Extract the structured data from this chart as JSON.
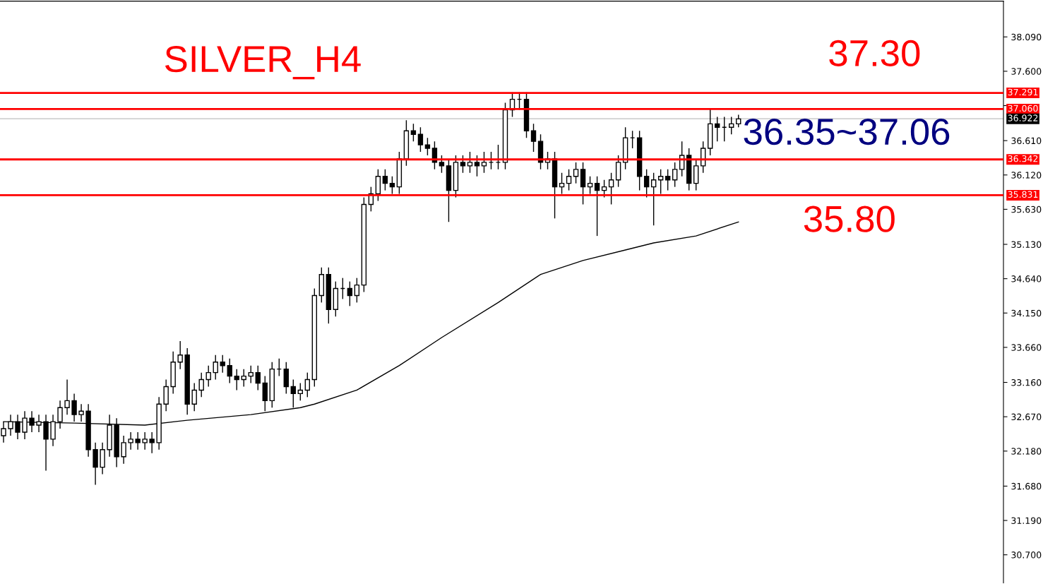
{
  "chart_data": {
    "type": "candlestick",
    "title": "SILVER_H4",
    "categories": [
      null,
      null,
      null,
      null,
      null,
      null,
      null,
      null,
      null,
      null,
      null,
      null,
      null,
      null,
      null,
      null,
      null,
      null,
      null,
      null,
      null,
      null,
      null,
      null,
      null,
      null,
      null,
      null,
      null,
      null,
      null,
      null,
      null,
      null,
      null,
      null,
      null,
      null,
      null,
      null,
      null,
      null,
      null,
      null,
      null,
      null,
      null,
      null,
      null,
      null,
      null,
      null,
      null,
      null,
      null,
      null,
      null,
      null,
      null,
      null,
      null,
      null,
      null,
      null,
      null,
      null,
      null,
      null,
      null,
      null,
      null,
      null,
      null,
      null,
      null,
      null,
      null,
      null,
      null,
      null,
      null,
      null,
      null,
      null,
      null,
      null,
      null,
      null,
      null,
      null,
      null,
      null,
      null,
      null,
      null,
      null,
      null,
      null,
      null,
      null,
      null,
      null,
      null,
      null,
      null,
      null,
      null,
      null,
      null,
      null,
      null,
      null,
      null,
      null,
      null,
      null,
      null,
      null,
      null,
      null,
      null,
      null,
      null,
      null,
      null,
      null,
      null,
      null,
      null,
      null,
      null,
      null,
      null,
      null,
      null,
      null,
      null,
      null,
      null,
      null,
      null,
      null
    ],
    "ohlc": [
      [
        32.4,
        32.6,
        32.3,
        32.5
      ],
      [
        32.5,
        32.7,
        32.4,
        32.6
      ],
      [
        32.6,
        32.7,
        32.35,
        32.45
      ],
      [
        32.45,
        32.75,
        32.35,
        32.65
      ],
      [
        32.65,
        32.75,
        32.45,
        32.55
      ],
      [
        32.55,
        32.7,
        32.45,
        32.6
      ],
      [
        32.6,
        32.7,
        31.9,
        32.35
      ],
      [
        32.35,
        32.7,
        32.25,
        32.6
      ],
      [
        32.6,
        32.9,
        32.5,
        32.8
      ],
      [
        32.8,
        33.2,
        32.7,
        32.9
      ],
      [
        32.9,
        33.0,
        32.6,
        32.7
      ],
      [
        32.7,
        32.85,
        32.6,
        32.75
      ],
      [
        32.75,
        32.85,
        32.1,
        32.2
      ],
      [
        32.2,
        32.3,
        31.7,
        31.95
      ],
      [
        31.95,
        32.3,
        31.85,
        32.2
      ],
      [
        32.2,
        32.7,
        32.1,
        32.55
      ],
      [
        32.55,
        32.65,
        31.95,
        32.1
      ],
      [
        32.1,
        32.4,
        32.0,
        32.3
      ],
      [
        32.3,
        32.45,
        32.2,
        32.35
      ],
      [
        32.35,
        32.45,
        32.2,
        32.3
      ],
      [
        32.3,
        32.45,
        32.2,
        32.35
      ],
      [
        32.35,
        32.45,
        32.15,
        32.3
      ],
      [
        32.3,
        32.95,
        32.2,
        32.85
      ],
      [
        32.85,
        33.2,
        32.75,
        33.1
      ],
      [
        33.1,
        33.6,
        33.0,
        33.45
      ],
      [
        33.45,
        33.75,
        33.35,
        33.55
      ],
      [
        33.55,
        33.65,
        32.7,
        32.85
      ],
      [
        32.85,
        33.15,
        32.75,
        33.05
      ],
      [
        33.05,
        33.3,
        32.95,
        33.2
      ],
      [
        33.2,
        33.4,
        33.1,
        33.3
      ],
      [
        33.3,
        33.55,
        33.2,
        33.45
      ],
      [
        33.45,
        33.55,
        33.3,
        33.4
      ],
      [
        33.4,
        33.5,
        33.15,
        33.25
      ],
      [
        33.25,
        33.35,
        33.05,
        33.2
      ],
      [
        33.2,
        33.35,
        33.1,
        33.25
      ],
      [
        33.25,
        33.4,
        33.15,
        33.3
      ],
      [
        33.3,
        33.4,
        33.05,
        33.15
      ],
      [
        33.15,
        33.25,
        32.75,
        32.9
      ],
      [
        32.9,
        33.45,
        32.8,
        33.35
      ],
      [
        33.35,
        33.5,
        33.25,
        33.35
      ],
      [
        33.35,
        33.45,
        33.0,
        33.1
      ],
      [
        33.1,
        33.2,
        32.8,
        33.0
      ],
      [
        33.0,
        33.15,
        32.9,
        33.05
      ],
      [
        33.05,
        33.3,
        32.95,
        33.2
      ],
      [
        33.2,
        34.5,
        33.1,
        34.4
      ],
      [
        34.4,
        34.8,
        34.3,
        34.7
      ],
      [
        34.7,
        34.8,
        34.0,
        34.2
      ],
      [
        34.2,
        34.6,
        34.1,
        34.5
      ],
      [
        34.5,
        34.65,
        34.35,
        34.5
      ],
      [
        34.5,
        34.6,
        34.25,
        34.4
      ],
      [
        34.4,
        34.65,
        34.3,
        34.55
      ],
      [
        34.55,
        35.8,
        34.45,
        35.7
      ],
      [
        35.7,
        35.95,
        35.6,
        35.85
      ],
      [
        35.85,
        36.2,
        35.75,
        36.1
      ],
      [
        36.1,
        36.2,
        35.9,
        36.0
      ],
      [
        36.0,
        36.1,
        35.85,
        35.95
      ],
      [
        35.95,
        36.45,
        35.85,
        36.35
      ],
      [
        36.35,
        36.9,
        36.25,
        36.75
      ],
      [
        36.75,
        36.85,
        36.6,
        36.7
      ],
      [
        36.7,
        36.8,
        36.45,
        36.55
      ],
      [
        36.55,
        36.65,
        36.4,
        36.5
      ],
      [
        36.5,
        36.6,
        36.2,
        36.3
      ],
      [
        36.3,
        36.4,
        36.15,
        36.25
      ],
      [
        36.25,
        36.35,
        35.45,
        35.9
      ],
      [
        35.9,
        36.4,
        35.8,
        36.3
      ],
      [
        36.3,
        36.4,
        36.15,
        36.25
      ],
      [
        36.25,
        36.45,
        36.15,
        36.3
      ],
      [
        36.3,
        36.4,
        36.1,
        36.25
      ],
      [
        36.25,
        36.45,
        36.15,
        36.3
      ],
      [
        36.3,
        36.45,
        36.2,
        36.3
      ],
      [
        36.3,
        36.55,
        36.2,
        36.3
      ],
      [
        36.3,
        37.15,
        36.2,
        37.05
      ],
      [
        37.05,
        37.3,
        36.95,
        37.2
      ],
      [
        37.2,
        37.3,
        37.05,
        37.2
      ],
      [
        37.2,
        37.3,
        36.65,
        36.75
      ],
      [
        36.75,
        36.85,
        36.45,
        36.6
      ],
      [
        36.6,
        36.7,
        36.2,
        36.3
      ],
      [
        36.3,
        36.45,
        36.2,
        36.35
      ],
      [
        36.35,
        36.45,
        35.5,
        35.95
      ],
      [
        35.95,
        36.15,
        35.85,
        36.0
      ],
      [
        36.0,
        36.2,
        35.9,
        36.1
      ],
      [
        36.1,
        36.3,
        36.0,
        36.2
      ],
      [
        36.2,
        36.3,
        35.7,
        35.95
      ],
      [
        35.95,
        36.1,
        35.85,
        36.0
      ],
      [
        36.0,
        36.1,
        35.25,
        35.9
      ],
      [
        35.9,
        36.05,
        35.8,
        35.95
      ],
      [
        35.95,
        36.15,
        35.7,
        36.05
      ],
      [
        36.05,
        36.4,
        35.95,
        36.3
      ],
      [
        36.3,
        36.8,
        36.2,
        36.65
      ],
      [
        36.65,
        36.75,
        36.5,
        36.65
      ],
      [
        36.65,
        36.75,
        35.9,
        36.1
      ],
      [
        36.1,
        36.2,
        35.8,
        35.95
      ],
      [
        35.95,
        36.15,
        35.4,
        36.05
      ],
      [
        36.05,
        36.2,
        35.85,
        36.1
      ],
      [
        36.1,
        36.2,
        35.9,
        36.05
      ],
      [
        36.05,
        36.3,
        35.95,
        36.2
      ],
      [
        36.2,
        36.6,
        36.1,
        36.4
      ],
      [
        36.4,
        36.5,
        35.9,
        36.0
      ],
      [
        36.0,
        36.35,
        35.9,
        36.25
      ],
      [
        36.25,
        36.6,
        36.15,
        36.5
      ],
      [
        36.5,
        37.07,
        36.4,
        36.85
      ],
      [
        36.85,
        36.95,
        36.6,
        36.8
      ],
      [
        36.8,
        36.95,
        36.6,
        36.8
      ],
      [
        36.8,
        36.95,
        36.7,
        36.85
      ],
      [
        36.85,
        36.98,
        36.8,
        36.92
      ],
      null,
      null,
      null,
      null,
      null,
      null,
      null,
      null,
      null,
      null,
      null,
      null,
      null,
      null,
      null,
      null,
      null,
      null,
      null,
      null,
      null,
      null,
      null,
      null,
      null,
      null,
      null,
      null,
      null,
      null,
      null,
      null,
      null,
      null,
      null,
      null,
      null
    ],
    "series": [
      {
        "type": "line",
        "color": "#000000",
        "values": [
          32.6,
          null,
          null,
          null,
          null,
          null,
          null,
          null,
          null,
          null,
          32.58,
          null,
          null,
          null,
          null,
          null,
          null,
          null,
          null,
          null,
          32.55,
          null,
          null,
          null,
          null,
          null,
          32.62,
          null,
          null,
          null,
          null,
          null,
          null,
          null,
          null,
          32.7,
          null,
          null,
          null,
          null,
          null,
          null,
          32.8,
          null,
          32.85,
          null,
          null,
          null,
          null,
          null,
          33.05,
          null,
          null,
          null,
          null,
          null,
          33.4,
          null,
          null,
          null,
          null,
          null,
          33.8,
          null,
          null,
          null,
          null,
          null,
          null,
          null,
          34.3,
          null,
          null,
          null,
          null,
          null,
          34.7,
          null,
          null,
          null,
          null,
          null,
          34.9,
          null,
          null,
          null,
          null,
          null,
          35.05,
          null,
          null,
          null,
          35.15,
          null,
          null,
          null,
          null,
          null,
          35.25,
          null,
          null,
          null,
          null,
          null,
          35.45,
          null,
          null,
          null,
          null,
          null,
          null,
          null,
          null,
          null,
          null,
          null,
          null,
          null,
          null,
          null,
          null,
          null,
          null,
          null,
          null,
          null,
          null,
          null,
          null,
          null,
          null,
          null,
          null,
          null,
          null,
          null,
          null,
          null,
          null,
          null,
          null,
          null
        ]
      }
    ],
    "ylim": [
      30.3,
      38.6
    ],
    "yticks": [
      {
        "value": 38.09,
        "label": "38.090"
      },
      {
        "value": 37.6,
        "label": "37.600"
      },
      {
        "value": 37.11,
        "label": null
      },
      {
        "value": 36.61,
        "label": "36.610"
      },
      {
        "value": 36.12,
        "label": "36.120"
      },
      {
        "value": 35.63,
        "label": "35.630"
      },
      {
        "value": 35.13,
        "label": "35.130"
      },
      {
        "value": 34.64,
        "label": "34.640"
      },
      {
        "value": 34.15,
        "label": "34.150"
      },
      {
        "value": 33.66,
        "label": "33.660"
      },
      {
        "value": 33.16,
        "label": "33.160"
      },
      {
        "value": 32.67,
        "label": "32.670"
      },
      {
        "value": 32.18,
        "label": "32.180"
      },
      {
        "value": 31.68,
        "label": "31.680"
      },
      {
        "value": 31.19,
        "label": "31.190"
      },
      {
        "value": 30.7,
        "label": "30.700"
      }
    ],
    "ref_lines": [
      {
        "axis": "y",
        "value": 37.291,
        "label": "37.291",
        "color": "#ff0000"
      },
      {
        "axis": "y",
        "value": 37.06,
        "label": "37.060",
        "color": "#ff0000"
      },
      {
        "axis": "y",
        "value": 36.922,
        "label": "36.922",
        "color": "#c0c0c0"
      },
      {
        "axis": "y",
        "value": 36.342,
        "label": "36.342",
        "color": "#ff0000"
      },
      {
        "axis": "y",
        "value": 35.831,
        "label": "35.831",
        "color": "#ff0000"
      }
    ],
    "annotations": [
      "37.30",
      "36.35~37.06",
      "35.80"
    ],
    "tick_labels": "y",
    "grid": false,
    "legend": false
  }
}
